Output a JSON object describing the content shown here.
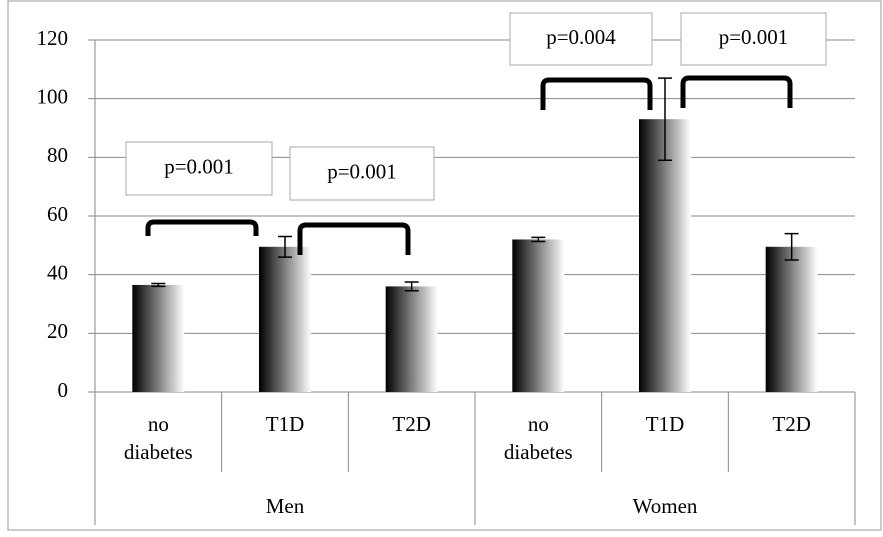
{
  "chart_data": {
    "type": "bar",
    "categories": [
      "no diabetes",
      "T1D",
      "T2D",
      "no diabetes",
      "T1D",
      "T2D"
    ],
    "groups": [
      "Men",
      "Women"
    ],
    "values": [
      36.5,
      49.5,
      36,
      52,
      93,
      49.5
    ],
    "errors": [
      0.5,
      3.5,
      1.5,
      0.7,
      14,
      4.5
    ],
    "color": "#000000",
    "ylim": [
      0,
      120
    ],
    "yticks": [
      0,
      20,
      40,
      60,
      80,
      100,
      120
    ],
    "grid": true,
    "annotations": [
      "p=0.001",
      "p=0.001",
      "p=0.004",
      "p=0.001"
    ]
  }
}
